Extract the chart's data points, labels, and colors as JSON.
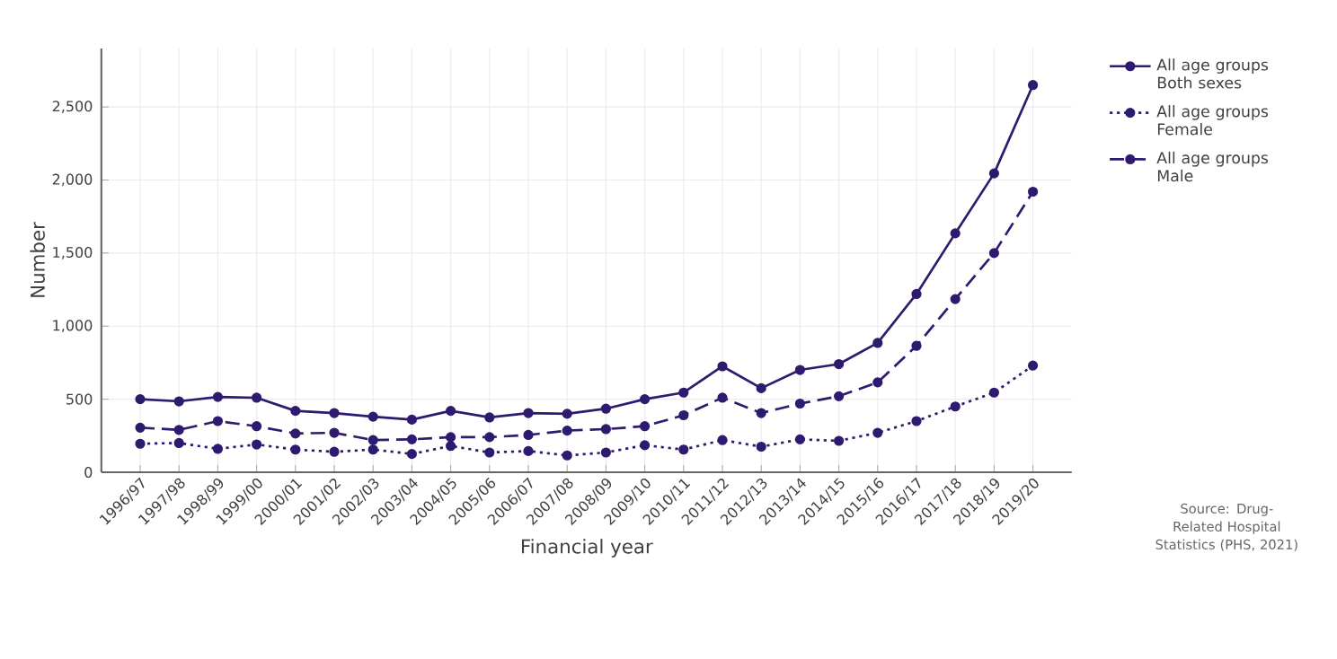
{
  "chart_data": {
    "type": "line",
    "xlabel": "Financial year",
    "ylabel": "Number",
    "categories": [
      "1996/97",
      "1997/98",
      "1998/99",
      "1999/00",
      "2000/01",
      "2001/02",
      "2002/03",
      "2003/04",
      "2004/05",
      "2005/06",
      "2006/07",
      "2007/08",
      "2008/09",
      "2009/10",
      "2010/11",
      "2011/12",
      "2012/13",
      "2013/14",
      "2014/15",
      "2015/16",
      "2016/17",
      "2017/18",
      "2018/19",
      "2019/20"
    ],
    "series": [
      {
        "name": "All age groups Both sexes",
        "color": "#2e1a6e",
        "line_style": "solid",
        "values": [
          500,
          485,
          515,
          510,
          420,
          405,
          380,
          360,
          420,
          375,
          405,
          400,
          435,
          500,
          545,
          725,
          575,
          700,
          740,
          885,
          1220,
          1635,
          2045,
          2650
        ]
      },
      {
        "name": "All age groups Female",
        "color": "#2e1a6e",
        "line_style": "dotted",
        "values": [
          195,
          200,
          160,
          190,
          155,
          140,
          155,
          125,
          180,
          135,
          145,
          115,
          135,
          185,
          155,
          220,
          175,
          225,
          215,
          270,
          350,
          450,
          545,
          730
        ]
      },
      {
        "name": "All age groups Male",
        "color": "#2e1a6e",
        "line_style": "dashed",
        "values": [
          305,
          290,
          350,
          315,
          265,
          270,
          220,
          225,
          240,
          240,
          255,
          285,
          295,
          315,
          390,
          510,
          405,
          470,
          520,
          615,
          865,
          1185,
          1500,
          1920
        ]
      }
    ],
    "ylim": [
      0,
      2900
    ],
    "yticks": [
      0,
      {
        "value": 500,
        "label": "500"
      },
      {
        "value": 1000,
        "label": "1,000"
      },
      {
        "value": 1500,
        "label": "1,500"
      },
      {
        "value": 2000,
        "label": "2,000"
      },
      {
        "value": 2500,
        "label": "2,500"
      }
    ],
    "grid": true,
    "legend": "top right",
    "marker": "circle",
    "annotations": [
      "Source: Drug-Related Hospital Statistics (PHS, 2021)"
    ]
  }
}
